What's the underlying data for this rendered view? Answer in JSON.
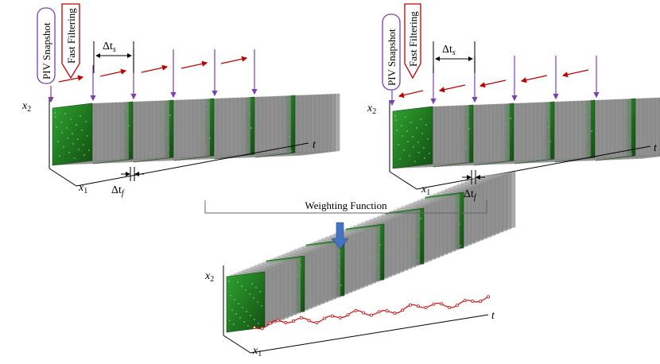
{
  "labels": {
    "piv_snapshot": "PIV Snapshot",
    "fast_filtering": "Fast Filtering",
    "delta_ts_base": "Δt",
    "delta_ts_sub": "s",
    "delta_tf_base": "Δt",
    "delta_tf_sub": "f",
    "axis_x2_base": "x",
    "axis_x2_sub": "2",
    "axis_x1_base": "x",
    "axis_x1_sub": "1",
    "axis_t": "t",
    "weighting_function": "Weighting Function"
  },
  "colors": {
    "piv_box": "#7a3fb0",
    "filter_box": "#c00000",
    "arrows_red": "#c00000",
    "arrows_purple": "#7a3fb0",
    "down_arrow": "#4472c4",
    "piv_green": "#1f8a1f",
    "trajectory": "#d01010"
  },
  "icons": {
    "down_arrow": "block-arrow-down-icon"
  }
}
